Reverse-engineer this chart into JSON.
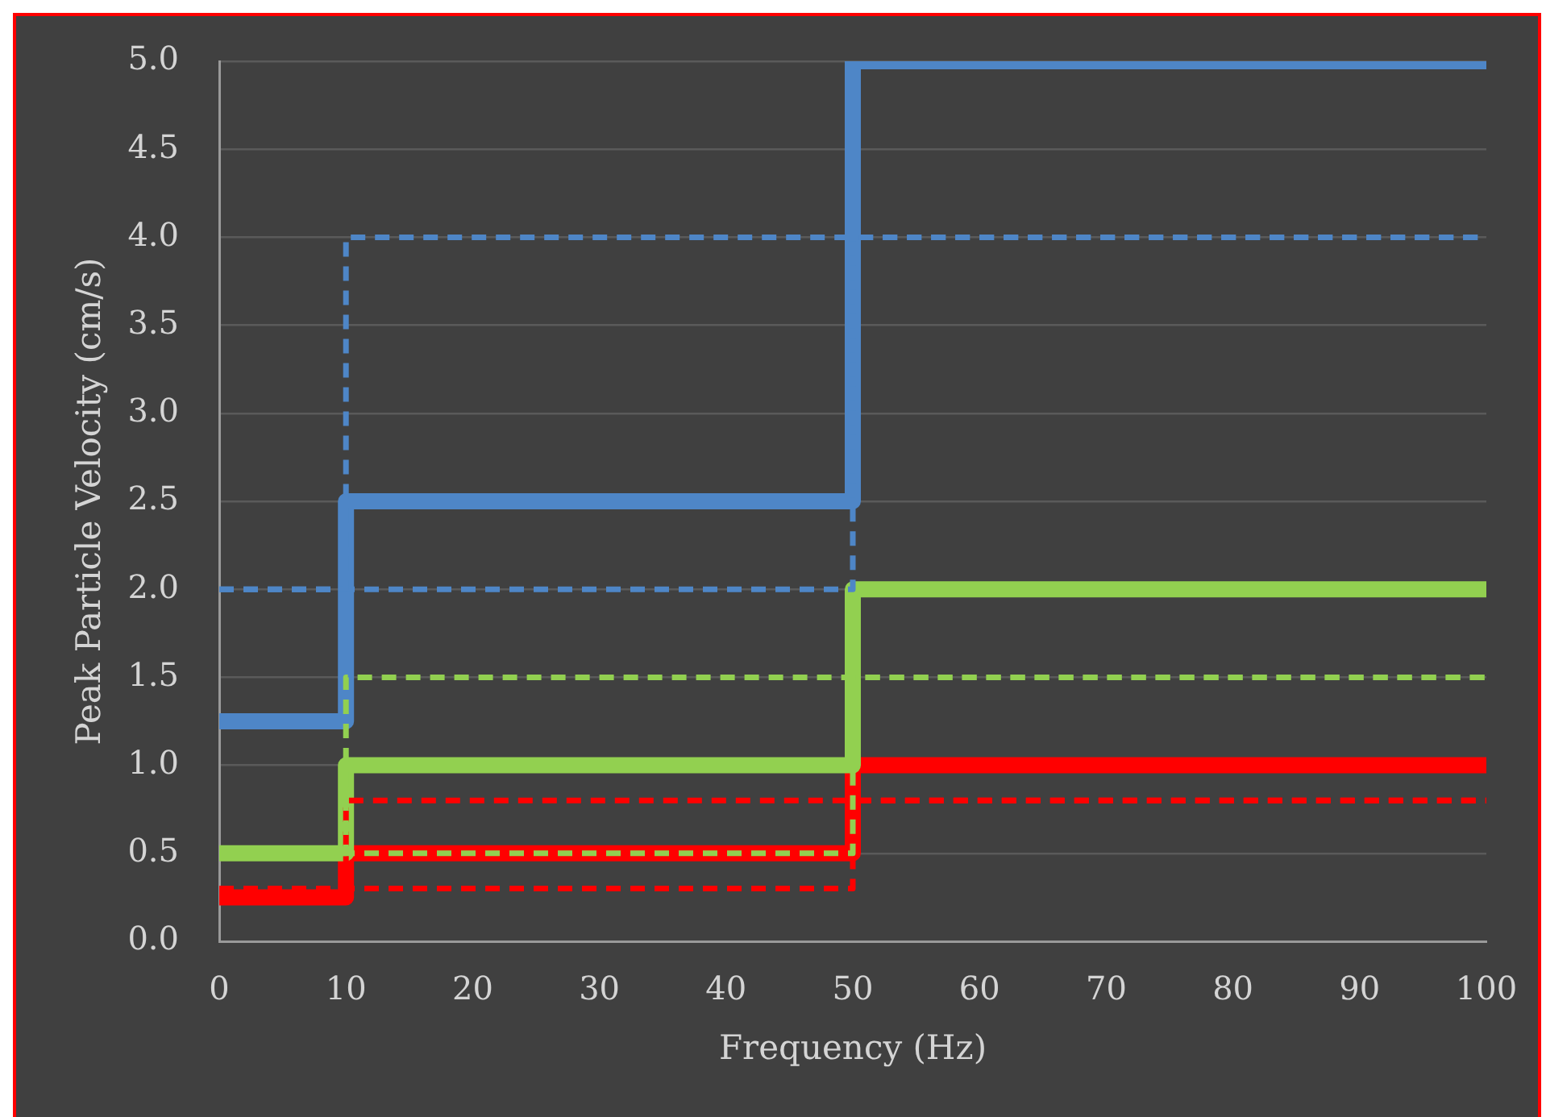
{
  "chart_data": {
    "type": "step",
    "xlabel": "Frequency (Hz)",
    "ylabel": "Peak Particle Velocity (cm/s)",
    "xlim": [
      0,
      100
    ],
    "xticks": [
      0,
      10,
      20,
      30,
      40,
      50,
      60,
      70,
      80,
      90,
      100
    ],
    "ylim": [
      0,
      5
    ],
    "yticks": [
      {
        "value": 0,
        "label": "0.0"
      },
      {
        "value": 0.5,
        "label": "0.5"
      },
      {
        "value": 1,
        "label": "1.0"
      },
      {
        "value": 1.5,
        "label": "1.5"
      },
      {
        "value": 2,
        "label": "2.0"
      },
      {
        "value": 2.5,
        "label": "2.5"
      },
      {
        "value": 3,
        "label": "3.0"
      },
      {
        "value": 3.5,
        "label": "3.5"
      },
      {
        "value": 4,
        "label": "4.0"
      },
      {
        "value": 4.5,
        "label": "4.5"
      },
      {
        "value": 5,
        "label": "5.0"
      }
    ],
    "grid": "y",
    "legend": false,
    "marker": "none",
    "series": [
      {
        "color": "#4e86c7",
        "line_style": "solid",
        "x": [
          0,
          10,
          50,
          100
        ],
        "values": [
          1.25,
          2.5,
          5,
          5
        ]
      },
      {
        "color": "#4e86c7",
        "line_style": "dashed",
        "x": [
          0,
          10,
          100
        ],
        "values": [
          2,
          4,
          4
        ]
      },
      {
        "color": "#4e86c7",
        "line_style": "dashed",
        "x": [
          0,
          50,
          100
        ],
        "values": [
          2,
          4,
          4
        ]
      },
      {
        "color": "#92d050",
        "line_style": "solid",
        "x": [
          0,
          10,
          50,
          100
        ],
        "values": [
          0.5,
          1,
          2,
          2
        ]
      },
      {
        "color": "#92d050",
        "line_style": "dashed",
        "x": [
          0,
          10,
          100
        ],
        "values": [
          0.5,
          1.5,
          1.5
        ]
      },
      {
        "color": "#92d050",
        "line_style": "dashed",
        "x": [
          0,
          50,
          100
        ],
        "values": [
          0.5,
          1.5,
          1.5
        ]
      },
      {
        "color": "#ff0000",
        "line_style": "solid",
        "x": [
          0,
          10,
          50,
          100
        ],
        "values": [
          0.25,
          0.5,
          1,
          1
        ]
      },
      {
        "color": "#ff0000",
        "line_style": "dashed",
        "x": [
          0,
          10,
          100
        ],
        "values": [
          0.3,
          0.8,
          0.8
        ]
      },
      {
        "color": "#ff0000",
        "line_style": "dashed",
        "x": [
          0,
          50,
          100
        ],
        "values": [
          0.3,
          0.8,
          0.8
        ]
      }
    ]
  }
}
